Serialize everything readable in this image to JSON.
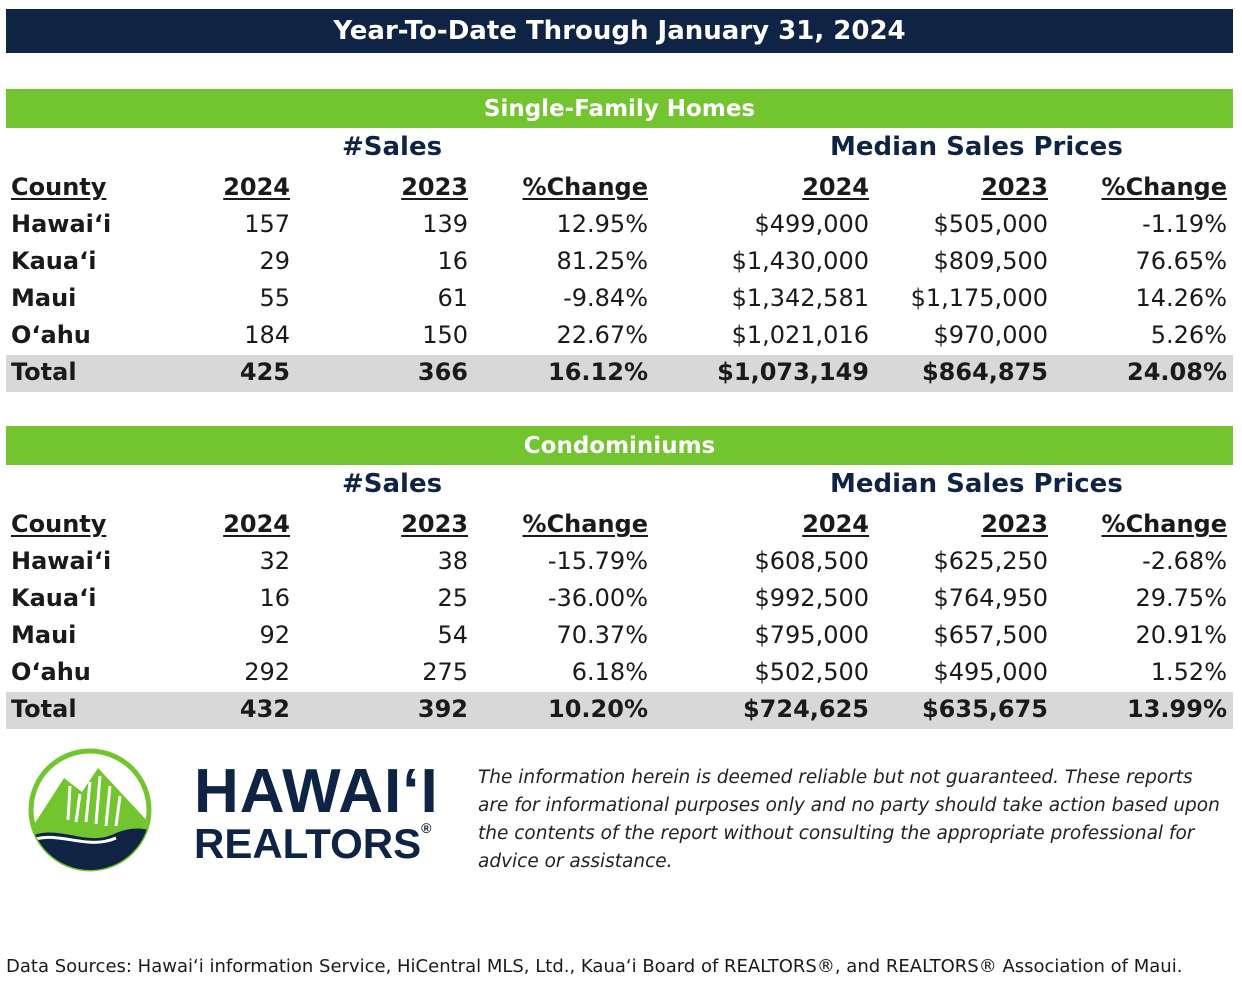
{
  "title": "Year-To-Date Through January 31, 2024",
  "sections": [
    {
      "heading": "Single-Family Homes",
      "sales_label": "#Sales",
      "prices_label": "Median Sales Prices",
      "columns": [
        "County",
        "2024",
        "2023",
        "%Change",
        "2024",
        "2023",
        "%Change"
      ],
      "rows": [
        [
          "Hawai‘i",
          "157",
          "139",
          "12.95%",
          "$499,000",
          "$505,000",
          "-1.19%"
        ],
        [
          "Kaua‘i",
          "29",
          "16",
          "81.25%",
          "$1,430,000",
          "$809,500",
          "76.65%"
        ],
        [
          "Maui",
          "55",
          "61",
          "-9.84%",
          "$1,342,581",
          "$1,175,000",
          "14.26%"
        ],
        [
          "O‘ahu",
          "184",
          "150",
          "22.67%",
          "$1,021,016",
          "$970,000",
          "5.26%"
        ]
      ],
      "total": [
        "Total",
        "425",
        "366",
        "16.12%",
        "$1,073,149",
        "$864,875",
        "24.08%"
      ]
    },
    {
      "heading": "Condominiums",
      "sales_label": "#Sales",
      "prices_label": "Median Sales Prices",
      "columns": [
        "County",
        "2024",
        "2023",
        "%Change",
        "2024",
        "2023",
        "%Change"
      ],
      "rows": [
        [
          "Hawai‘i",
          "32",
          "38",
          "-15.79%",
          "$608,500",
          "$625,250",
          "-2.68%"
        ],
        [
          "Kaua‘i",
          "16",
          "25",
          "-36.00%",
          "$992,500",
          "$764,950",
          "29.75%"
        ],
        [
          "Maui",
          "92",
          "54",
          "70.37%",
          "$795,000",
          "$657,500",
          "20.91%"
        ],
        [
          "O‘ahu",
          "292",
          "275",
          "6.18%",
          "$502,500",
          "$495,000",
          "1.52%"
        ]
      ],
      "total": [
        "Total",
        "432",
        "392",
        "10.20%",
        "$724,625",
        "$635,675",
        "13.99%"
      ]
    }
  ],
  "logo": {
    "line1": "HAWAI‘I",
    "line2": "REALTORS",
    "mark": "®",
    "colors": {
      "navy": "#0f2444",
      "green": "#73c530"
    }
  },
  "disclaimer": "The information herein is deemed reliable but not guaranteed. These reports are for informational purposes only and no party should take action based upon the contents of the report without consulting the appropriate professional for advice or assistance.",
  "sources": "Data Sources: Hawai‘i information Service, HiCentral MLS, Ltd., Kaua‘i Board of REALTORS®, and REALTORS® Association of Maui."
}
